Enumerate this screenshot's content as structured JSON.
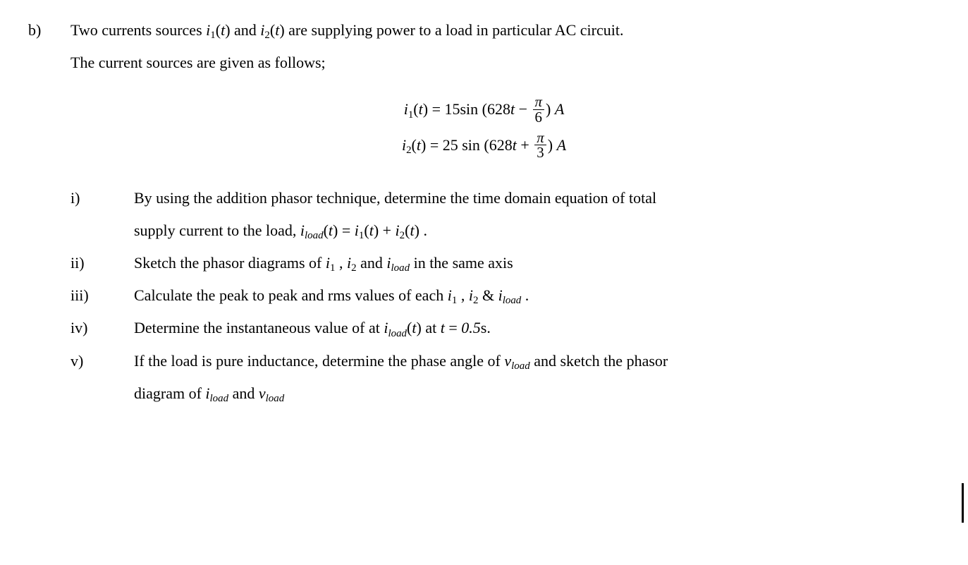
{
  "main": {
    "label": "b)",
    "intro_1": "Two currents sources ",
    "intro_var1_sym": "i",
    "intro_var1_sub": "1",
    "intro_var1_arg": "(t)",
    "intro_and": " and ",
    "intro_var2_sym": "i",
    "intro_var2_sub": "2",
    "intro_var2_arg": "(t)",
    "intro_tail": " are supplying power to a load in particular AC circuit.",
    "intro_2": "The current sources are given as follows;"
  },
  "eq": {
    "e1": {
      "lhs_sym": "i",
      "lhs_sub": "1",
      "lhs_arg": "(t) = ",
      "amp": "15",
      "func": "sin",
      "lpar": " (",
      "omega": "628",
      "tvar": "t",
      "sign": " − ",
      "num": "π",
      "den": "6",
      "rpar": ") ",
      "unit": "A"
    },
    "e2": {
      "lhs_sym": "i",
      "lhs_sub": "2",
      "lhs_arg": "(t) = ",
      "amp": "25",
      "func": " sin",
      "lpar": " (",
      "omega": "628",
      "tvar": "t",
      "sign": " + ",
      "num": "π",
      "den": "3",
      "rpar": ") ",
      "unit": "A"
    }
  },
  "items": {
    "i": {
      "label": "i)",
      "t1": "By using the addition phasor technique, determine the time domain equation of total",
      "t2a": "supply current to the load, ",
      "ild_sym": "i",
      "ild_sub": "load",
      "ild_arg": "(t) = ",
      "i1_sym": "i",
      "i1_sub": "1",
      "i1_arg": "(t) + ",
      "i2_sym": "i",
      "i2_sub": "2",
      "i2_arg": "(t)",
      "period": " ."
    },
    "ii": {
      "label": "ii)",
      "t1": "Sketch the phasor diagrams of ",
      "i1_sym": "i",
      "i1_sub": "1",
      "comma1": " , ",
      "i2_sym": "i",
      "i2_sub": "2",
      "and": " and ",
      "ild_sym": "i",
      "ild_sub": "load",
      "tail": " in the same axis"
    },
    "iii": {
      "label": "iii)",
      "t1": "Calculate the peak to peak and rms values of each ",
      "i1_sym": "i",
      "i1_sub": "1",
      "comma1": " , ",
      "i2_sym": "i",
      "i2_sub": "2",
      "amp": " & ",
      "ild_sym": "i",
      "ild_sub": "load",
      "period": " ."
    },
    "iv": {
      "label": "iv)",
      "t1": "Determine the instantaneous value of at ",
      "ild_sym": "i",
      "ild_sub": "load",
      "ild_arg": "(t)",
      "t2": " at ",
      "tvar_sym": "t",
      "eq": " = ",
      "tval": "0.5",
      "unit": "s",
      "period": "."
    },
    "v": {
      "label": "v)",
      "t1": "If the load is pure inductance, determine the phase angle of ",
      "vld_sym": "v",
      "vld_sub": "load",
      "t2": " and sketch the phasor ",
      "t3": "diagram of ",
      "ild_sym": "i",
      "ild_sub": "load",
      "and": " and ",
      "vld2_sym": "v",
      "vld2_sub": "load"
    }
  }
}
